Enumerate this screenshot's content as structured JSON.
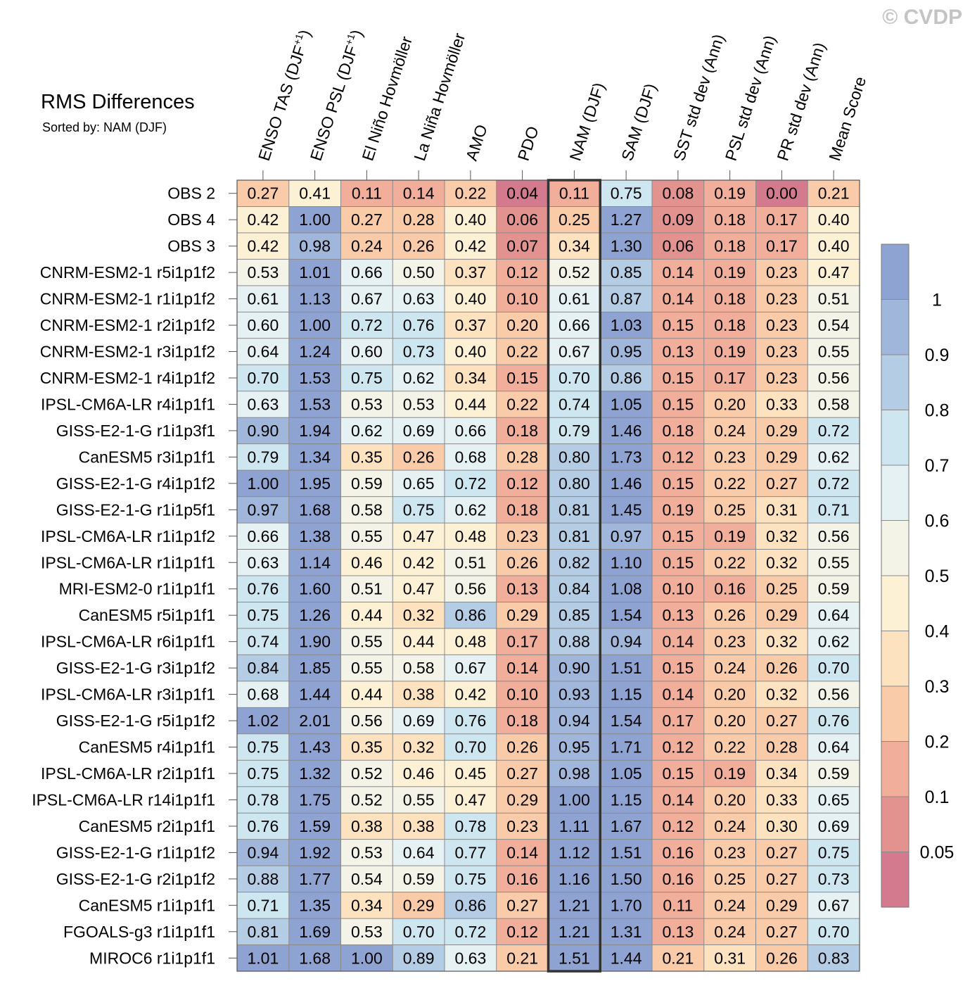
{
  "watermark": "© CVDP",
  "chart_data": {
    "type": "heatmap",
    "title": "RMS Differences",
    "subtitle": "Sorted by: NAM (DJF)",
    "highlight_column": "NAM (DJF)",
    "columns": [
      "ENSO TAS (DJF+1)",
      "ENSO PSL (DJF+1)",
      "El Niño Hovmöller",
      "La Niña Hovmöller",
      "AMO",
      "PDO",
      "NAM (DJF)",
      "SAM (DJF)",
      "SST std dev (Ann)",
      "PSL std dev (Ann)",
      "PR std dev (Ann)",
      "Mean Score"
    ],
    "rows": [
      {
        "name": "OBS 2",
        "values": [
          0.27,
          0.41,
          0.11,
          0.14,
          0.22,
          0.04,
          0.11,
          0.75,
          0.08,
          0.19,
          0.0,
          0.21
        ]
      },
      {
        "name": "OBS 4",
        "values": [
          0.42,
          1.0,
          0.27,
          0.28,
          0.4,
          0.06,
          0.25,
          1.27,
          0.09,
          0.18,
          0.17,
          0.4
        ]
      },
      {
        "name": "OBS 3",
        "values": [
          0.42,
          0.98,
          0.24,
          0.26,
          0.42,
          0.07,
          0.34,
          1.3,
          0.06,
          0.18,
          0.17,
          0.4
        ]
      },
      {
        "name": "CNRM-ESM2-1 r5i1p1f2",
        "values": [
          0.53,
          1.01,
          0.66,
          0.5,
          0.37,
          0.12,
          0.52,
          0.85,
          0.14,
          0.19,
          0.23,
          0.47
        ]
      },
      {
        "name": "CNRM-ESM2-1 r1i1p1f2",
        "values": [
          0.61,
          1.13,
          0.67,
          0.63,
          0.4,
          0.1,
          0.61,
          0.87,
          0.14,
          0.18,
          0.23,
          0.51
        ]
      },
      {
        "name": "CNRM-ESM2-1 r2i1p1f2",
        "values": [
          0.6,
          1.0,
          0.72,
          0.76,
          0.37,
          0.2,
          0.66,
          1.03,
          0.15,
          0.18,
          0.23,
          0.54
        ]
      },
      {
        "name": "CNRM-ESM2-1 r3i1p1f2",
        "values": [
          0.64,
          1.24,
          0.6,
          0.73,
          0.4,
          0.22,
          0.67,
          0.95,
          0.13,
          0.19,
          0.23,
          0.55
        ]
      },
      {
        "name": "CNRM-ESM2-1 r4i1p1f2",
        "values": [
          0.7,
          1.53,
          0.75,
          0.62,
          0.34,
          0.15,
          0.7,
          0.86,
          0.15,
          0.17,
          0.23,
          0.56
        ]
      },
      {
        "name": "IPSL-CM6A-LR r4i1p1f1",
        "values": [
          0.63,
          1.53,
          0.53,
          0.53,
          0.44,
          0.22,
          0.74,
          1.05,
          0.15,
          0.2,
          0.33,
          0.58
        ]
      },
      {
        "name": "GISS-E2-1-G r1i1p3f1",
        "values": [
          0.9,
          1.94,
          0.62,
          0.69,
          0.66,
          0.18,
          0.79,
          1.46,
          0.18,
          0.24,
          0.29,
          0.72
        ]
      },
      {
        "name": "CanESM5 r3i1p1f1",
        "values": [
          0.79,
          1.34,
          0.35,
          0.26,
          0.68,
          0.28,
          0.8,
          1.73,
          0.12,
          0.23,
          0.29,
          0.62
        ]
      },
      {
        "name": "GISS-E2-1-G r4i1p1f2",
        "values": [
          1.0,
          1.95,
          0.59,
          0.65,
          0.72,
          0.12,
          0.8,
          1.46,
          0.15,
          0.22,
          0.27,
          0.72
        ]
      },
      {
        "name": "GISS-E2-1-G r1i1p5f1",
        "values": [
          0.97,
          1.68,
          0.58,
          0.75,
          0.62,
          0.18,
          0.81,
          1.45,
          0.19,
          0.25,
          0.31,
          0.71
        ]
      },
      {
        "name": "IPSL-CM6A-LR r1i1p1f2",
        "values": [
          0.66,
          1.38,
          0.55,
          0.47,
          0.48,
          0.23,
          0.81,
          0.97,
          0.15,
          0.19,
          0.32,
          0.56
        ]
      },
      {
        "name": "IPSL-CM6A-LR r1i1p1f1",
        "values": [
          0.63,
          1.14,
          0.46,
          0.42,
          0.51,
          0.26,
          0.82,
          1.1,
          0.15,
          0.22,
          0.32,
          0.55
        ]
      },
      {
        "name": "MRI-ESM2-0 r1i1p1f1",
        "values": [
          0.76,
          1.6,
          0.51,
          0.47,
          0.56,
          0.13,
          0.84,
          1.08,
          0.1,
          0.16,
          0.25,
          0.59
        ]
      },
      {
        "name": "CanESM5 r5i1p1f1",
        "values": [
          0.75,
          1.26,
          0.44,
          0.32,
          0.86,
          0.29,
          0.85,
          1.54,
          0.13,
          0.26,
          0.29,
          0.64
        ]
      },
      {
        "name": "IPSL-CM6A-LR r6i1p1f1",
        "values": [
          0.74,
          1.9,
          0.55,
          0.44,
          0.48,
          0.17,
          0.88,
          0.94,
          0.14,
          0.23,
          0.32,
          0.62
        ]
      },
      {
        "name": "GISS-E2-1-G r3i1p1f2",
        "values": [
          0.84,
          1.85,
          0.55,
          0.58,
          0.67,
          0.14,
          0.9,
          1.51,
          0.15,
          0.24,
          0.26,
          0.7
        ]
      },
      {
        "name": "IPSL-CM6A-LR r3i1p1f1",
        "values": [
          0.68,
          1.44,
          0.44,
          0.38,
          0.42,
          0.1,
          0.93,
          1.15,
          0.14,
          0.2,
          0.32,
          0.56
        ]
      },
      {
        "name": "GISS-E2-1-G r5i1p1f2",
        "values": [
          1.02,
          2.01,
          0.56,
          0.69,
          0.76,
          0.18,
          0.94,
          1.54,
          0.17,
          0.2,
          0.27,
          0.76
        ]
      },
      {
        "name": "CanESM5 r4i1p1f1",
        "values": [
          0.75,
          1.43,
          0.35,
          0.32,
          0.7,
          0.26,
          0.95,
          1.71,
          0.12,
          0.22,
          0.28,
          0.64
        ]
      },
      {
        "name": "IPSL-CM6A-LR r2i1p1f1",
        "values": [
          0.75,
          1.32,
          0.52,
          0.46,
          0.45,
          0.27,
          0.98,
          1.05,
          0.15,
          0.19,
          0.34,
          0.59
        ]
      },
      {
        "name": "IPSL-CM6A-LR r14i1p1f1",
        "values": [
          0.78,
          1.75,
          0.52,
          0.55,
          0.47,
          0.29,
          1.0,
          1.15,
          0.14,
          0.2,
          0.33,
          0.65
        ]
      },
      {
        "name": "CanESM5 r2i1p1f1",
        "values": [
          0.76,
          1.59,
          0.38,
          0.38,
          0.78,
          0.23,
          1.11,
          1.67,
          0.12,
          0.24,
          0.3,
          0.69
        ]
      },
      {
        "name": "GISS-E2-1-G r1i1p1f2",
        "values": [
          0.94,
          1.92,
          0.53,
          0.64,
          0.77,
          0.14,
          1.12,
          1.51,
          0.16,
          0.23,
          0.27,
          0.75
        ]
      },
      {
        "name": "GISS-E2-1-G r2i1p1f2",
        "values": [
          0.88,
          1.77,
          0.54,
          0.59,
          0.75,
          0.16,
          1.16,
          1.5,
          0.16,
          0.25,
          0.27,
          0.73
        ]
      },
      {
        "name": "CanESM5 r1i1p1f1",
        "values": [
          0.71,
          1.35,
          0.34,
          0.29,
          0.86,
          0.27,
          1.21,
          1.7,
          0.11,
          0.24,
          0.29,
          0.67
        ]
      },
      {
        "name": "FGOALS-g3 r1i1p1f1",
        "values": [
          0.81,
          1.69,
          0.53,
          0.7,
          0.72,
          0.12,
          1.21,
          1.31,
          0.13,
          0.24,
          0.27,
          0.7
        ]
      },
      {
        "name": "MIROC6 r1i1p1f1",
        "values": [
          1.01,
          1.68,
          1.0,
          0.89,
          0.63,
          0.21,
          1.51,
          1.44,
          0.21,
          0.31,
          0.26,
          0.83
        ]
      }
    ],
    "colorbar": {
      "levels": [
        0.05,
        0.1,
        0.2,
        0.3,
        0.4,
        0.5,
        0.6,
        0.7,
        0.8,
        0.9,
        1
      ],
      "labels": [
        "0.05",
        "0.1",
        "0.2",
        "0.3",
        "0.4",
        "0.5",
        "0.6",
        "0.7",
        "0.8",
        "0.9",
        "1"
      ],
      "colors": [
        "#d37a8e",
        "#e2938f",
        "#f1ae9a",
        "#f9cba9",
        "#fde2c0",
        "#fcf1d4",
        "#f3f3e8",
        "#e6f1f4",
        "#cde6f0",
        "#b4cde4",
        "#a0b6da",
        "#8ea3d1"
      ]
    }
  }
}
